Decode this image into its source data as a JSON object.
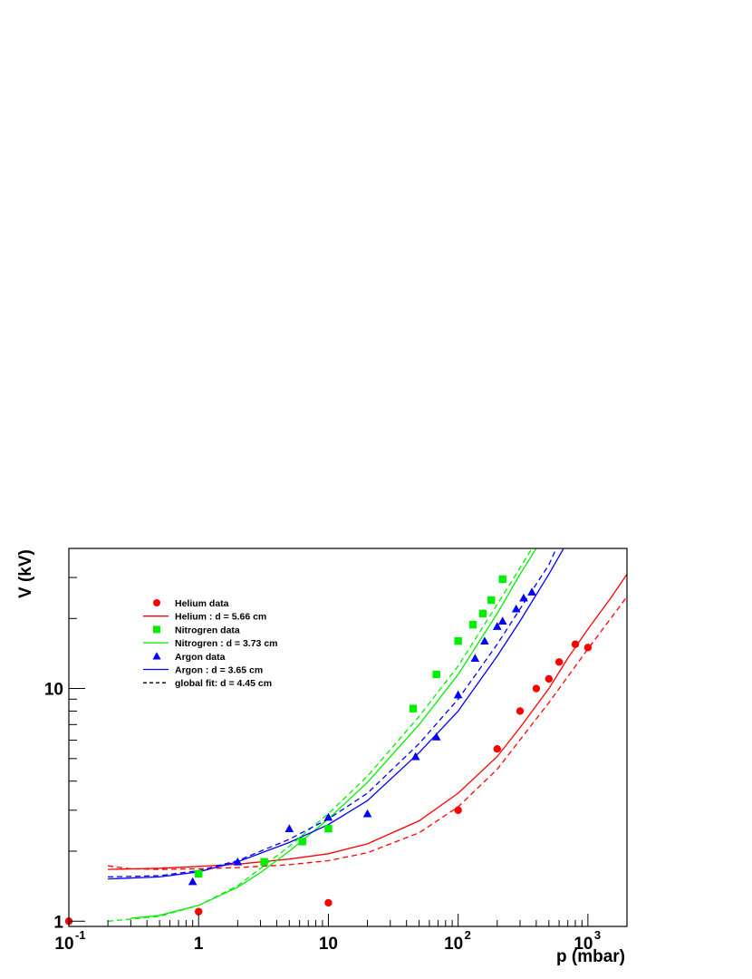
{
  "chart_data": {
    "type": "scatter",
    "title": "",
    "xlabel": "p (mbar)",
    "ylabel": "V (kV)",
    "x_scale": "log",
    "y_scale": "log",
    "xlim": [
      0.1,
      2000
    ],
    "ylim": [
      0.95,
      40
    ],
    "grid": false,
    "legend_position": "top-left",
    "x_tick_labels": [
      {
        "base": "10",
        "exp": "-1",
        "value": 0.1
      },
      {
        "base": "1",
        "exp": "",
        "value": 1
      },
      {
        "base": "10",
        "exp": "",
        "value": 10
      },
      {
        "base": "10",
        "exp": "2",
        "value": 100
      },
      {
        "base": "10",
        "exp": "3",
        "value": 1000
      }
    ],
    "y_tick_labels": [
      {
        "label": "1",
        "value": 1
      },
      {
        "label": "10",
        "value": 10
      }
    ],
    "series": [
      {
        "name": "Helium data",
        "kind": "points",
        "marker": "circle",
        "color": "#ff0000",
        "points": [
          [
            0.1,
            1.0
          ],
          [
            1,
            1.1
          ],
          [
            10,
            1.2
          ],
          [
            100,
            3.0
          ],
          [
            200,
            5.5
          ],
          [
            300,
            8.0
          ],
          [
            400,
            10.0
          ],
          [
            500,
            11.0
          ],
          [
            600,
            13.0
          ],
          [
            800,
            15.5
          ],
          [
            1000,
            15.0
          ]
        ]
      },
      {
        "name": "Helium : d = 5.66 cm",
        "kind": "line",
        "dash": "solid",
        "color": "#ff0000",
        "points": [
          [
            0.2,
            1.67
          ],
          [
            0.5,
            1.69
          ],
          [
            1,
            1.72
          ],
          [
            2,
            1.76
          ],
          [
            5,
            1.85
          ],
          [
            10,
            1.95
          ],
          [
            20,
            2.15
          ],
          [
            50,
            2.7
          ],
          [
            100,
            3.55
          ],
          [
            200,
            5.1
          ],
          [
            300,
            6.8
          ],
          [
            500,
            10.0
          ],
          [
            700,
            13.5
          ],
          [
            1000,
            18.0
          ],
          [
            1500,
            24.5
          ],
          [
            2000,
            31.0
          ]
        ]
      },
      {
        "name": "Nitrogren data",
        "kind": "points",
        "marker": "square",
        "color": "#00ee00",
        "points": [
          [
            1,
            1.6
          ],
          [
            3.2,
            1.8
          ],
          [
            6.3,
            2.2
          ],
          [
            10,
            2.5
          ],
          [
            45,
            8.2
          ],
          [
            68,
            11.5
          ],
          [
            100,
            16.0
          ],
          [
            130,
            18.8
          ],
          [
            155,
            21.0
          ],
          [
            180,
            24.0
          ],
          [
            220,
            29.5
          ]
        ]
      },
      {
        "name": "Nitrogren : d = 3.73 cm",
        "kind": "line",
        "dash": "solid",
        "color": "#00ee00",
        "points": [
          [
            0.3,
            1.03
          ],
          [
            0.5,
            1.06
          ],
          [
            1,
            1.17
          ],
          [
            2,
            1.4
          ],
          [
            3,
            1.62
          ],
          [
            5,
            2.0
          ],
          [
            10,
            2.75
          ],
          [
            20,
            3.95
          ],
          [
            50,
            7.0
          ],
          [
            100,
            11.5
          ],
          [
            200,
            21.0
          ],
          [
            300,
            31.0
          ],
          [
            400,
            40.0
          ]
        ]
      },
      {
        "name": "Argon data",
        "kind": "points",
        "marker": "triangle",
        "color": "#0000ff",
        "points": [
          [
            0.9,
            1.48
          ],
          [
            2,
            1.8
          ],
          [
            5,
            2.5
          ],
          [
            10,
            2.8
          ],
          [
            20,
            2.9
          ],
          [
            47,
            5.1
          ],
          [
            68,
            6.2
          ],
          [
            100,
            9.4
          ],
          [
            135,
            13.5
          ],
          [
            160,
            16.0
          ],
          [
            200,
            18.5
          ],
          [
            220,
            19.5
          ],
          [
            280,
            22.0
          ],
          [
            320,
            24.5
          ],
          [
            370,
            26.0
          ]
        ]
      },
      {
        "name": "Argon : d = 3.65 cm",
        "kind": "line",
        "dash": "solid",
        "color": "#0000ff",
        "points": [
          [
            0.2,
            1.52
          ],
          [
            0.5,
            1.55
          ],
          [
            1,
            1.63
          ],
          [
            2,
            1.8
          ],
          [
            5,
            2.18
          ],
          [
            10,
            2.6
          ],
          [
            20,
            3.3
          ],
          [
            50,
            5.3
          ],
          [
            100,
            8.0
          ],
          [
            200,
            13.8
          ],
          [
            300,
            19.5
          ],
          [
            500,
            31.0
          ],
          [
            600,
            37.0
          ],
          [
            650,
            40.0
          ]
        ]
      },
      {
        "name": "global fit: d = 4.45 cm",
        "kind": "line",
        "dash": "dashed",
        "color": "#000000",
        "parts": [
          {
            "color": "#ff0000",
            "points": [
              [
                0.2,
                1.73
              ],
              [
                0.3,
                1.68
              ],
              [
                0.5,
                1.67
              ],
              [
                1,
                1.68
              ],
              [
                2,
                1.7
              ],
              [
                5,
                1.75
              ],
              [
                10,
                1.82
              ],
              [
                20,
                1.97
              ],
              [
                50,
                2.4
              ],
              [
                100,
                3.1
              ],
              [
                200,
                4.5
              ],
              [
                500,
                8.7
              ],
              [
                1000,
                14.8
              ],
              [
                2000,
                24.8
              ]
            ]
          },
          {
            "color": "#00ee00",
            "points": [
              [
                0.2,
                1.0
              ],
              [
                0.5,
                1.05
              ],
              [
                1,
                1.17
              ],
              [
                2,
                1.42
              ],
              [
                5,
                2.1
              ],
              [
                10,
                2.9
              ],
              [
                20,
                4.2
              ],
              [
                50,
                7.6
              ],
              [
                100,
                12.5
              ],
              [
                200,
                23.0
              ],
              [
                280,
                31.0
              ],
              [
                350,
                38.0
              ],
              [
                370,
                40.0
              ]
            ]
          },
          {
            "color": "#0000ff",
            "points": [
              [
                0.2,
                1.55
              ],
              [
                0.5,
                1.57
              ],
              [
                1,
                1.65
              ],
              [
                2,
                1.82
              ],
              [
                5,
                2.25
              ],
              [
                10,
                2.75
              ],
              [
                20,
                3.55
              ],
              [
                50,
                5.8
              ],
              [
                100,
                9.0
              ],
              [
                200,
                15.5
              ],
              [
                300,
                22.0
              ],
              [
                500,
                34.0
              ],
              [
                570,
                40.0
              ]
            ]
          }
        ]
      }
    ]
  }
}
